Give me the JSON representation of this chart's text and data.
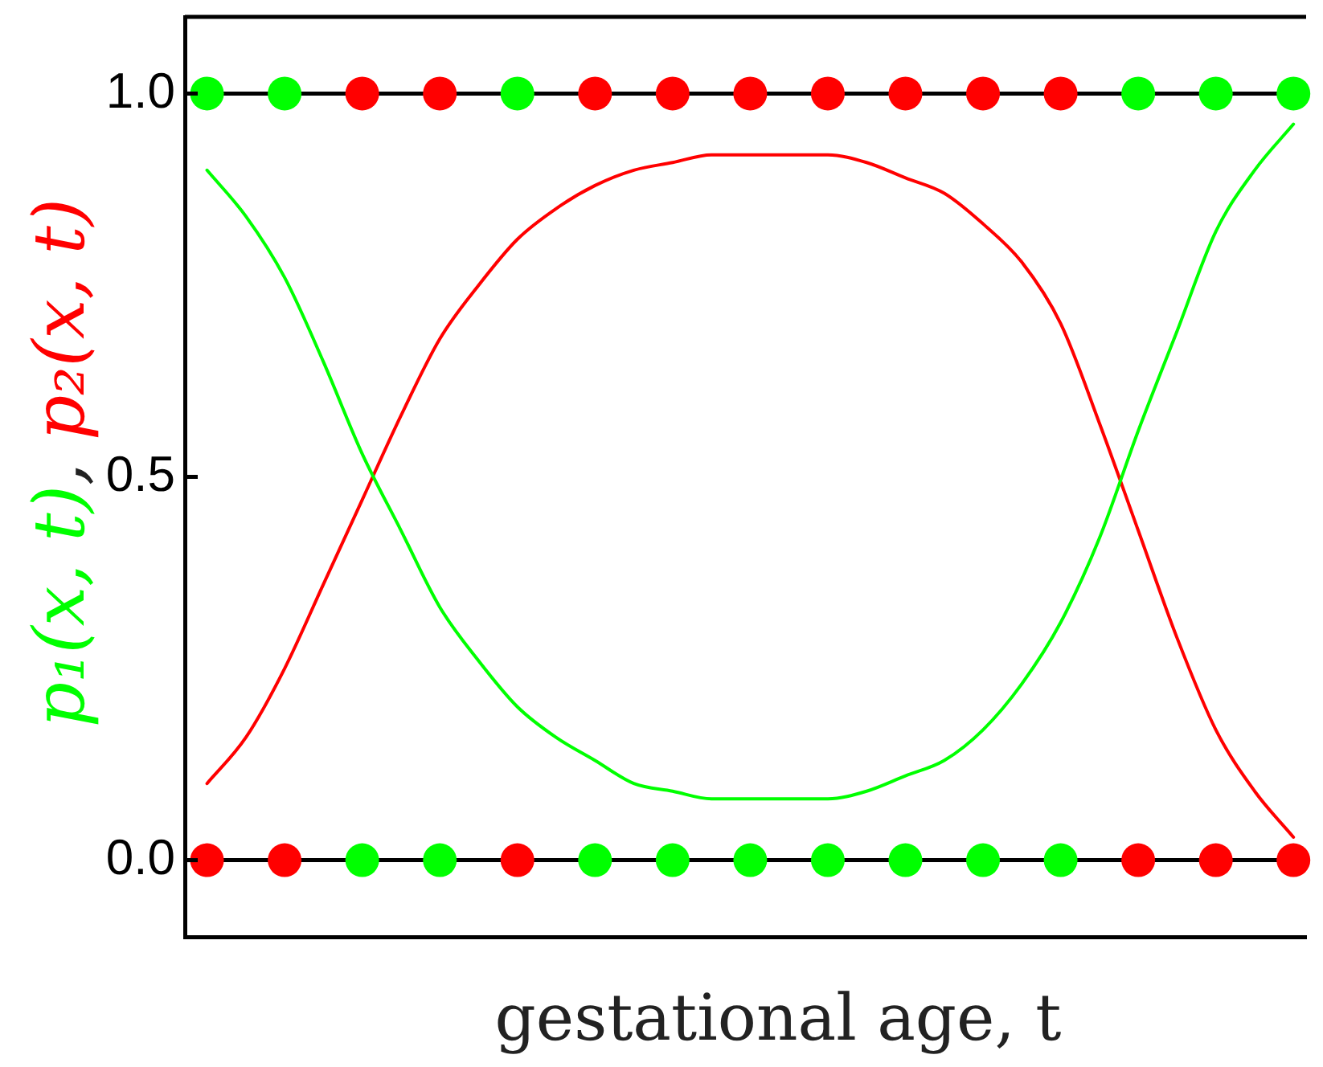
{
  "chart_data": {
    "type": "line",
    "xlabel": "gestational age, t",
    "ylabel": "p₁(x, t), p₂(x, t)",
    "ylim": [
      -0.1,
      1.1
    ],
    "yticks": [
      {
        "value": 0,
        "label": "0.0"
      },
      0.5,
      {
        "value": 1,
        "label": "1.0"
      }
    ],
    "tick_labels": "y",
    "categories": [
      null,
      null,
      null,
      null,
      null,
      null,
      null,
      null,
      null,
      null,
      null,
      null,
      null,
      null,
      null,
      null,
      null,
      null,
      null,
      null,
      null,
      null,
      null,
      null,
      null,
      null,
      null,
      null,
      null
    ],
    "ref_lines": [
      {
        "axis": "y",
        "value": 0,
        "color": "#000000"
      },
      {
        "axis": "y",
        "value": 1,
        "color": "#000000"
      }
    ],
    "series": [
      {
        "color": "#00ff00",
        "values": [
          0.9,
          0.84,
          0.76,
          0.65,
          0.53,
          0.43,
          0.33,
          0.26,
          0.2,
          0.16,
          0.13,
          0.1,
          0.09,
          0.08,
          0.08,
          0.08,
          0.08,
          0.09,
          0.11,
          0.13,
          0.17,
          0.23,
          0.31,
          0.42,
          0.56,
          0.69,
          0.82,
          0.9,
          0.96
        ]
      },
      {
        "color": "#ff0000",
        "values": [
          0.1,
          0.16,
          0.25,
          0.36,
          0.47,
          0.58,
          0.68,
          0.75,
          0.81,
          0.85,
          0.88,
          0.9,
          0.91,
          0.92,
          0.92,
          0.92,
          0.92,
          0.91,
          0.89,
          0.87,
          0.83,
          0.78,
          0.7,
          0.57,
          0.43,
          0.29,
          0.17,
          0.09,
          0.03
        ]
      },
      {
        "type": "scatter",
        "marker": "circle",
        "values": [
          1,
          null,
          1,
          null,
          1,
          null,
          1,
          null,
          1,
          null,
          1,
          null,
          1,
          null,
          1,
          null,
          1,
          null,
          1,
          null,
          1,
          null,
          1,
          null,
          1,
          null,
          1,
          null,
          1
        ],
        "colors": [
          "#00ff00",
          null,
          "#00ff00",
          null,
          "#ff0000",
          null,
          "#ff0000",
          null,
          "#00ff00",
          null,
          "#ff0000",
          null,
          "#ff0000",
          null,
          "#ff0000",
          null,
          "#ff0000",
          null,
          "#ff0000",
          null,
          "#ff0000",
          null,
          "#ff0000",
          null,
          "#00ff00",
          null,
          "#00ff00",
          null,
          "#00ff00"
        ]
      },
      {
        "type": "scatter",
        "marker": "circle",
        "values": [
          0,
          null,
          0,
          null,
          0,
          null,
          0,
          null,
          0,
          null,
          0,
          null,
          0,
          null,
          0,
          null,
          0,
          null,
          0,
          null,
          0,
          null,
          0,
          null,
          0,
          null,
          0,
          null,
          0
        ],
        "colors": [
          "#ff0000",
          null,
          "#ff0000",
          null,
          "#00ff00",
          null,
          "#00ff00",
          null,
          "#ff0000",
          null,
          "#00ff00",
          null,
          "#00ff00",
          null,
          "#00ff00",
          null,
          "#00ff00",
          null,
          "#00ff00",
          null,
          "#00ff00",
          null,
          "#00ff00",
          null,
          "#ff0000",
          null,
          "#ff0000",
          null,
          "#ff0000"
        ]
      }
    ]
  }
}
